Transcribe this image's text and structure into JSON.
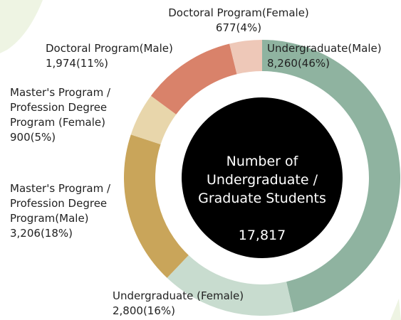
{
  "chart_data": {
    "type": "donut",
    "categories": [
      "Undergraduate(Male)",
      "Undergraduate (Female)",
      "Master's Program /\nProfession Degree\nProgram(Male)",
      "Master's Program /\nProfession Degree\nProgram (Female)",
      "Doctoral Program(Male)",
      "Doctoral Program(Female)"
    ],
    "values": [
      8260,
      2800,
      3206,
      900,
      1974,
      677
    ],
    "value_labels": [
      "8,260(46%)",
      "2,800(16%)",
      "3,206(18%)",
      "900(5%)",
      "1,974(11%)",
      "677(4%)"
    ],
    "colors": [
      "#8fb3a0",
      "#c8dccf",
      "#c9a55a",
      "#e8d6ab",
      "#d9826a",
      "#eec8b8"
    ],
    "center_text": "Number of\nUndergraduate /\nGraduate Students",
    "total": {
      "value": 17817,
      "label": "17,817"
    }
  }
}
